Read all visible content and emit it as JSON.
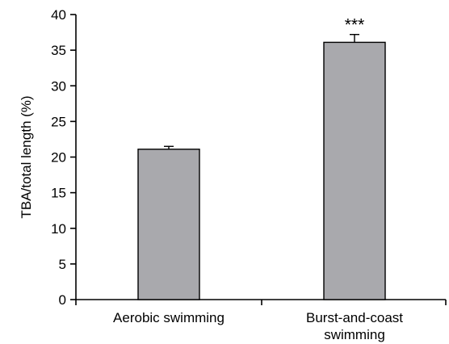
{
  "chart_data": {
    "type": "bar",
    "title": "",
    "xlabel": "",
    "ylabel": "TBA/total length (%)",
    "ylim": [
      0,
      40
    ],
    "yticks": [
      "0",
      "5",
      "10",
      "15",
      "20",
      "25",
      "30",
      "35",
      "40"
    ],
    "categories": [
      [
        "Aerobic swimming"
      ],
      [
        "Burst-and-coast",
        "swimming"
      ]
    ],
    "values": [
      21.1,
      36.1
    ],
    "errors": [
      0.4,
      1.1
    ],
    "annotations": [
      "",
      "***"
    ],
    "bar_color": "#a9a9ad",
    "grid": false
  }
}
